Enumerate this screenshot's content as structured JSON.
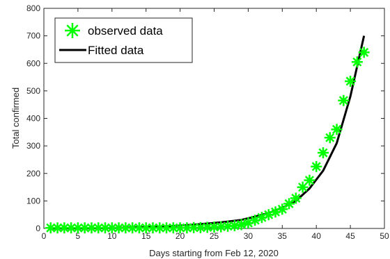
{
  "chart_data": {
    "type": "scatter",
    "xlabel": "Days starting from Feb 12, 2020",
    "ylabel": "Total confirmed",
    "xlim": [
      0,
      50
    ],
    "ylim": [
      0,
      800
    ],
    "xticks": [
      0,
      5,
      10,
      15,
      20,
      25,
      30,
      35,
      40,
      45,
      50
    ],
    "yticks": [
      0,
      100,
      200,
      300,
      400,
      500,
      600,
      700,
      800
    ],
    "grid": false,
    "legend_position": "top-left",
    "series": [
      {
        "name": "observed data",
        "kind": "markers",
        "marker": "asterisk",
        "color": "#00ff00",
        "x": [
          1,
          2,
          3,
          4,
          5,
          6,
          7,
          8,
          9,
          10,
          11,
          12,
          13,
          14,
          15,
          16,
          17,
          18,
          19,
          20,
          21,
          22,
          23,
          24,
          25,
          26,
          27,
          28,
          29,
          30,
          31,
          32,
          33,
          34,
          35,
          36,
          37,
          38,
          39,
          40,
          41,
          42,
          43,
          44,
          45,
          46,
          47
        ],
        "y": [
          2,
          2,
          2,
          2,
          2,
          2,
          2,
          2,
          2,
          2,
          2,
          2,
          2,
          2,
          2,
          2,
          2,
          2,
          2,
          2,
          2,
          3,
          3,
          4,
          5,
          6,
          8,
          10,
          14,
          20,
          30,
          40,
          50,
          60,
          70,
          90,
          110,
          150,
          175,
          225,
          275,
          330,
          360,
          465,
          535,
          605,
          640
        ]
      },
      {
        "name": "Fitted data",
        "kind": "line",
        "color": "#000000",
        "x": [
          1,
          3,
          5,
          7,
          9,
          11,
          13,
          15,
          17,
          19,
          21,
          23,
          25,
          27,
          29,
          31,
          33,
          35,
          37,
          39,
          41,
          43,
          45,
          46,
          47
        ],
        "y": [
          0.2,
          0.4,
          0.6,
          0.9,
          1.4,
          2,
          3,
          4.5,
          6.5,
          9,
          12,
          16,
          20,
          25,
          31,
          43,
          56,
          75,
          100,
          145,
          210,
          310,
          480,
          590,
          700
        ]
      }
    ]
  }
}
